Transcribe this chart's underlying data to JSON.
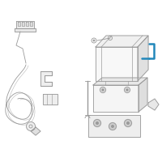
{
  "bg_color": "#ffffff",
  "line_color": "#999999",
  "line_color2": "#aaaaaa",
  "blue_color": "#2288bb",
  "fig_width": 2.0,
  "fig_height": 2.0,
  "dpi": 100
}
